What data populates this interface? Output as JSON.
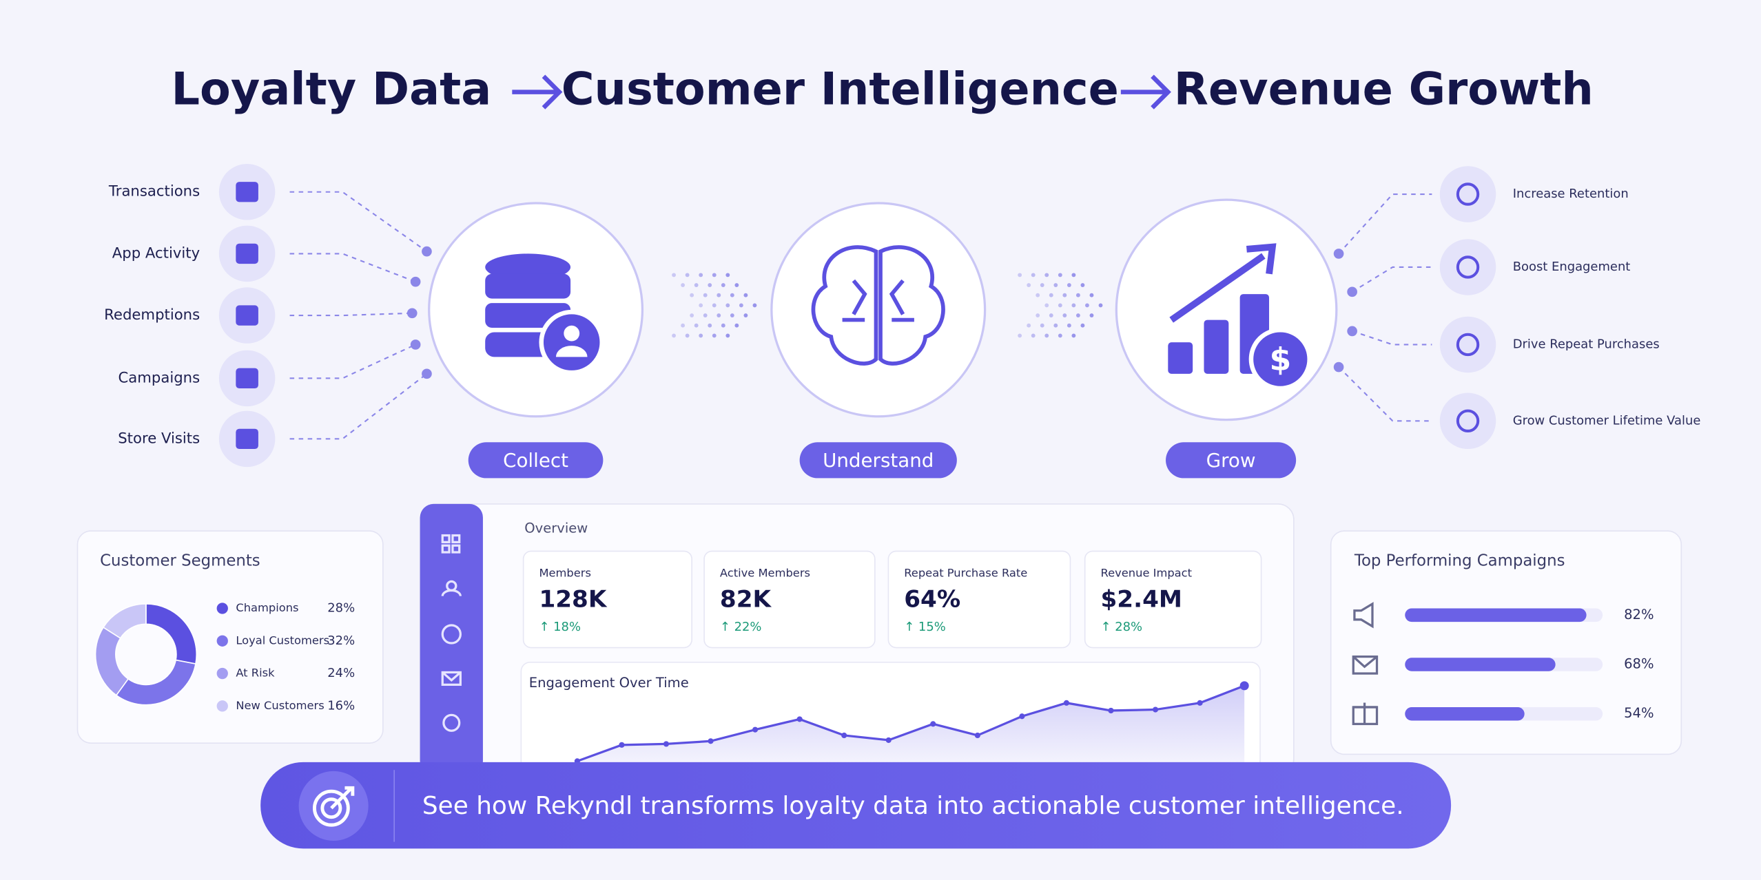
{
  "header": {
    "title_parts": [
      "Loyalty Data",
      "Customer Intelligence",
      "Revenue Growth"
    ]
  },
  "inputs": [
    "Transactions",
    "App Activity",
    "Redemptions",
    "Campaigns",
    "Store Visits"
  ],
  "stages": [
    "Collect",
    "Understand",
    "Grow"
  ],
  "outcomes": [
    "Increase Retention",
    "Boost Engagement",
    "Drive Repeat Purchases",
    "Grow Customer Lifetime Value"
  ],
  "segments": {
    "type": "pie",
    "title": "Customer Segments",
    "categories": [
      "Champions",
      "Loyal Customers",
      "At Risk",
      "New Customers"
    ],
    "values": [
      28,
      32,
      24,
      16
    ],
    "value_labels": [
      "28%",
      "32%",
      "24%",
      "16%"
    ],
    "colors": [
      "#5b50e0",
      "#7c74ea",
      "#a39df1",
      "#c9c6f7"
    ]
  },
  "overview": {
    "title": "Overview",
    "kpis": [
      {
        "label": "Members",
        "value": "128K",
        "change": "↑ 18%"
      },
      {
        "label": "Active Members",
        "value": "82K",
        "change": "↑ 22%"
      },
      {
        "label": "Repeat Purchase Rate",
        "value": "64%",
        "change": "↑ 15%"
      },
      {
        "label": "Revenue Impact",
        "value": "$2.4M",
        "change": "↑ 28%"
      }
    ]
  },
  "engagement": {
    "type": "line",
    "title": "Engagement Over Time",
    "values": [
      14,
      31,
      32,
      35,
      47,
      58,
      41,
      36,
      53,
      41,
      61,
      75,
      67,
      68,
      75,
      93
    ],
    "ylim": [
      0,
      100
    ],
    "color": "#5b50e0"
  },
  "campaigns": {
    "type": "bar",
    "title": "Top Performing Campaigns",
    "values": [
      82,
      68,
      54
    ],
    "value_labels": [
      "82%",
      "68%",
      "54%"
    ],
    "xlim": [
      0,
      100
    ],
    "color": "#6b61e6"
  },
  "banner": {
    "text": "See how Rekyndl transforms loyalty data into actionable customer intelligence."
  }
}
